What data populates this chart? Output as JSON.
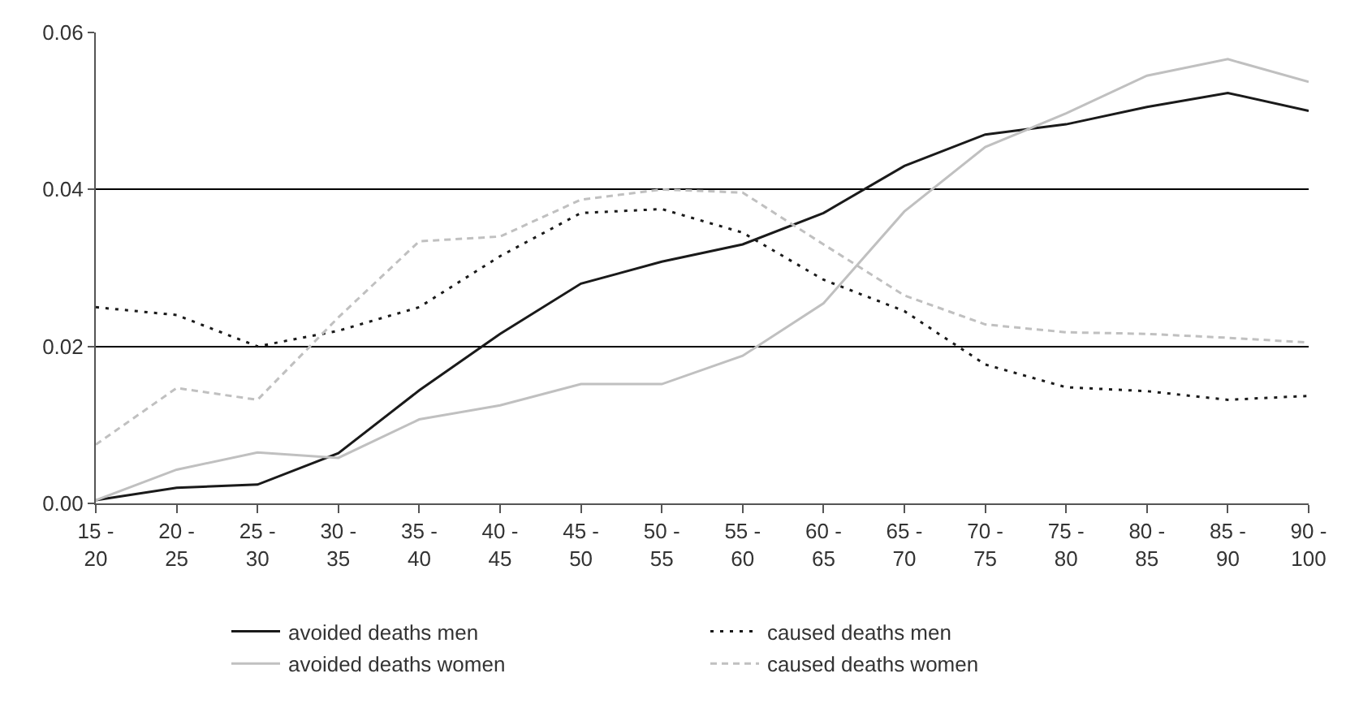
{
  "chart_data": {
    "type": "line",
    "categories": [
      "15 - 20",
      "20 - 25",
      "25 - 30",
      "30 - 35",
      "35 - 40",
      "40 - 45",
      "45 - 50",
      "50 - 55",
      "55 - 60",
      "60 - 65",
      "65 - 70",
      "70 - 75",
      "75 - 80",
      "80 - 85",
      "85 - 90",
      "90 - 100"
    ],
    "series": [
      {
        "name": "avoided deaths men",
        "color": "#1a1a1a",
        "line_style": "solid",
        "values": [
          0.0004,
          0.002,
          0.0024,
          0.0064,
          0.0144,
          0.0216,
          0.028,
          0.0308,
          0.033,
          0.037,
          0.043,
          0.047,
          0.0483,
          0.0505,
          0.0523,
          0.05
        ]
      },
      {
        "name": "caused deaths men",
        "color": "#1a1a1a",
        "line_style": "dotted",
        "values": [
          0.025,
          0.024,
          0.02,
          0.022,
          0.025,
          0.0315,
          0.037,
          0.0375,
          0.0345,
          0.0285,
          0.0245,
          0.0177,
          0.0148,
          0.0143,
          0.0132,
          0.0137
        ]
      },
      {
        "name": "avoided deaths women",
        "color": "#c0c0c0",
        "line_style": "solid",
        "values": [
          0.0004,
          0.0043,
          0.0065,
          0.0058,
          0.0107,
          0.0125,
          0.0152,
          0.0152,
          0.0188,
          0.0255,
          0.0372,
          0.0454,
          0.0497,
          0.0545,
          0.0566,
          0.0537
        ]
      },
      {
        "name": "caused deaths women",
        "color": "#c0c0c0",
        "line_style": "dashed",
        "values": [
          0.0075,
          0.0147,
          0.0132,
          0.0237,
          0.0334,
          0.034,
          0.0387,
          0.04,
          0.0396,
          0.033,
          0.0265,
          0.0228,
          0.0218,
          0.0216,
          0.0211,
          0.0205
        ]
      }
    ],
    "ylim": [
      0,
      0.06
    ],
    "yticks": [
      {
        "value": 0,
        "label": "0.00"
      },
      {
        "value": 0.02,
        "label": "0.02"
      },
      {
        "value": 0.04,
        "label": "0.04"
      },
      {
        "value": 0.06,
        "label": "0.06"
      }
    ],
    "grid": "y",
    "legend": "bottom",
    "marker": "none"
  }
}
